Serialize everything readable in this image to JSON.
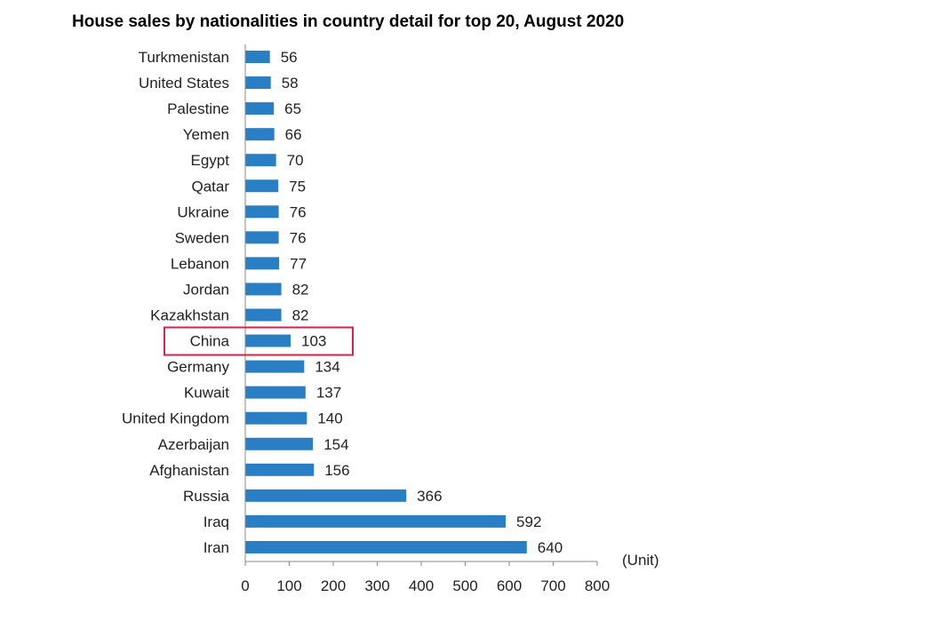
{
  "chart_data": {
    "type": "bar",
    "orientation": "horizontal",
    "title": "House sales by nationalities in country detail for top 20, August 2020",
    "unit_label": "(Unit)",
    "categories": [
      "Turkmenistan",
      "United States",
      "Palestine",
      "Yemen",
      "Egypt",
      "Qatar",
      "Ukraine",
      "Sweden",
      "Lebanon",
      "Jordan",
      "Kazakhstan",
      "China",
      "Germany",
      "Kuwait",
      "United Kingdom",
      "Azerbaijan",
      "Afghanistan",
      "Russia",
      "Iraq",
      "Iran"
    ],
    "values": [
      56,
      58,
      65,
      66,
      70,
      75,
      76,
      76,
      77,
      82,
      82,
      103,
      134,
      137,
      140,
      154,
      156,
      366,
      592,
      640
    ],
    "xlim": [
      0,
      800
    ],
    "xticks": [
      0,
      100,
      200,
      300,
      400,
      500,
      600,
      700,
      800
    ],
    "highlighted_category": "China",
    "bar_color": "#2a7fc4",
    "highlight_color": "#d6234a",
    "grid": false
  }
}
